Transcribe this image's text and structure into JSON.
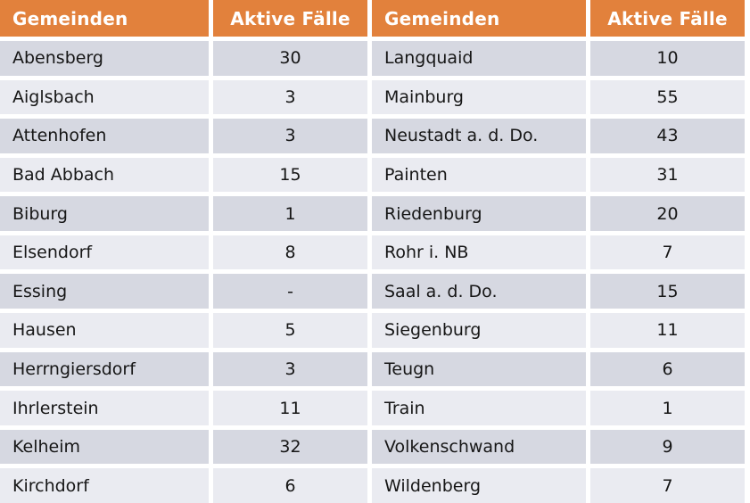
{
  "colors": {
    "header_bg": "#E2813C",
    "header_text": "#FFFFFF",
    "row_dark": "#D6D8E1",
    "row_light": "#EAEBF1",
    "text": "#161616",
    "background": "#FFFFFF"
  },
  "chart_data": {
    "type": "table",
    "columns": [
      "Gemeinden",
      "Aktive Fälle",
      "Gemeinden",
      "Aktive Fälle"
    ],
    "rows": [
      [
        "Abensberg",
        "30",
        "Langquaid",
        "10"
      ],
      [
        "Aiglsbach",
        "3",
        "Mainburg",
        "55"
      ],
      [
        "Attenhofen",
        "3",
        "Neustadt a. d. Do.",
        "43"
      ],
      [
        "Bad Abbach",
        "15",
        "Painten",
        "31"
      ],
      [
        "Biburg",
        "1",
        "Riedenburg",
        "20"
      ],
      [
        "Elsendorf",
        "8",
        "Rohr i. NB",
        "7"
      ],
      [
        "Essing",
        "-",
        "Saal a. d. Do.",
        "15"
      ],
      [
        "Hausen",
        "5",
        "Siegenburg",
        "11"
      ],
      [
        "Herrngiersdorf",
        "3",
        "Teugn",
        "6"
      ],
      [
        "Ihrlerstein",
        "11",
        "Train",
        "1"
      ],
      [
        "Kelheim",
        "32",
        "Volkenschwand",
        "9"
      ],
      [
        "Kirchdorf",
        "6",
        "Wildenberg",
        "7"
      ]
    ]
  }
}
